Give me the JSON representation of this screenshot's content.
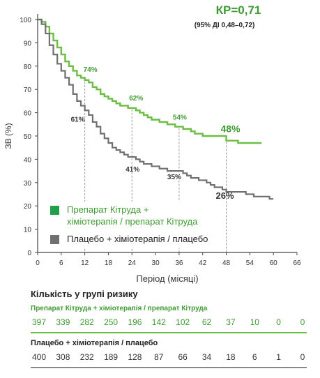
{
  "chart_data": {
    "type": "line",
    "subtype": "kaplan-meier",
    "xlabel": "Період (місяці)",
    "ylabel": "ЗВ (%)",
    "xlim": [
      0,
      66
    ],
    "ylim": [
      0,
      100
    ],
    "xticks": [
      0,
      6,
      12,
      18,
      24,
      30,
      36,
      42,
      48,
      54,
      60,
      66
    ],
    "yticks": [
      0,
      10,
      20,
      30,
      40,
      50,
      60,
      70,
      80,
      90,
      100
    ],
    "hazard_ratio": "КР=0,71",
    "confidence_interval": "(95% ДІ 0,48–0,72)",
    "legend_position": "bottom-left",
    "series": [
      {
        "name": "Препарат Кітруда +\nхіміотерапія / препарат Кітруда",
        "color": "#6cbd45",
        "points": [
          [
            0,
            100
          ],
          [
            1,
            99
          ],
          [
            2,
            97
          ],
          [
            3,
            94
          ],
          [
            4,
            91
          ],
          [
            5,
            88
          ],
          [
            6,
            85
          ],
          [
            7,
            82
          ],
          [
            8,
            80
          ],
          [
            9,
            78
          ],
          [
            10,
            76
          ],
          [
            11,
            75
          ],
          [
            12,
            74
          ],
          [
            13,
            73
          ],
          [
            14,
            71
          ],
          [
            15,
            70
          ],
          [
            16,
            68
          ],
          [
            17,
            67
          ],
          [
            18,
            66
          ],
          [
            19,
            65
          ],
          [
            20,
            64
          ],
          [
            21,
            63
          ],
          [
            22,
            63
          ],
          [
            23,
            62
          ],
          [
            24,
            62
          ],
          [
            25,
            61
          ],
          [
            26,
            60
          ],
          [
            27,
            59
          ],
          [
            28,
            58
          ],
          [
            29,
            57
          ],
          [
            30,
            57
          ],
          [
            31,
            56
          ],
          [
            32,
            56
          ],
          [
            33,
            55
          ],
          [
            34,
            55
          ],
          [
            35,
            54
          ],
          [
            36,
            54
          ],
          [
            37,
            53
          ],
          [
            38,
            53
          ],
          [
            39,
            52
          ],
          [
            40,
            51
          ],
          [
            41,
            51
          ],
          [
            42,
            50
          ],
          [
            43,
            50
          ],
          [
            44,
            50
          ],
          [
            45,
            50
          ],
          [
            46,
            50
          ],
          [
            47,
            50
          ],
          [
            48,
            48
          ],
          [
            49,
            48
          ],
          [
            50,
            48
          ],
          [
            51,
            47
          ],
          [
            52,
            47
          ],
          [
            53,
            47
          ],
          [
            54,
            47
          ],
          [
            55,
            47
          ],
          [
            56,
            47
          ],
          [
            57,
            47
          ]
        ],
        "annotations": [
          {
            "x": 12,
            "y": 74,
            "label": "74%"
          },
          {
            "x": 24,
            "y": 62,
            "label": "62%"
          },
          {
            "x": 36,
            "y": 54,
            "label": "54%"
          },
          {
            "x": 48,
            "y": 48,
            "label": "48%"
          }
        ]
      },
      {
        "name": "Плацебо + хіміотерапія / плацебо",
        "color": "#707070",
        "points": [
          [
            0,
            100
          ],
          [
            1,
            98
          ],
          [
            2,
            94
          ],
          [
            3,
            89
          ],
          [
            4,
            85
          ],
          [
            5,
            81
          ],
          [
            6,
            78
          ],
          [
            7,
            75
          ],
          [
            8,
            72
          ],
          [
            9,
            68
          ],
          [
            10,
            65
          ],
          [
            11,
            63
          ],
          [
            12,
            61
          ],
          [
            13,
            59
          ],
          [
            14,
            56
          ],
          [
            15,
            54
          ],
          [
            16,
            51
          ],
          [
            17,
            49
          ],
          [
            18,
            47
          ],
          [
            19,
            45
          ],
          [
            20,
            44
          ],
          [
            21,
            43
          ],
          [
            22,
            42
          ],
          [
            23,
            41
          ],
          [
            24,
            41
          ],
          [
            25,
            40
          ],
          [
            26,
            39
          ],
          [
            27,
            38
          ],
          [
            28,
            38
          ],
          [
            29,
            37
          ],
          [
            30,
            37
          ],
          [
            31,
            36
          ],
          [
            32,
            36
          ],
          [
            33,
            35
          ],
          [
            34,
            35
          ],
          [
            35,
            35
          ],
          [
            36,
            35
          ],
          [
            37,
            34
          ],
          [
            38,
            33
          ],
          [
            39,
            32
          ],
          [
            40,
            32
          ],
          [
            41,
            31
          ],
          [
            42,
            31
          ],
          [
            43,
            30
          ],
          [
            44,
            29
          ],
          [
            45,
            28
          ],
          [
            46,
            28
          ],
          [
            47,
            27
          ],
          [
            48,
            26
          ],
          [
            49,
            26
          ],
          [
            50,
            26
          ],
          [
            51,
            26
          ],
          [
            52,
            26
          ],
          [
            53,
            25
          ],
          [
            54,
            25
          ],
          [
            55,
            24
          ],
          [
            56,
            24
          ],
          [
            57,
            24
          ],
          [
            58,
            24
          ],
          [
            59,
            23
          ],
          [
            60,
            23
          ]
        ],
        "annotations": [
          {
            "x": 12,
            "y": 61,
            "label": "61%"
          },
          {
            "x": 24,
            "y": 41,
            "label": "41%"
          },
          {
            "x": 36,
            "y": 35,
            "label": "35%"
          },
          {
            "x": 48,
            "y": 26,
            "label": "26%"
          }
        ]
      }
    ]
  },
  "risk_table": {
    "title": "Кількість у групі ризику",
    "groups": [
      {
        "name": "Препарат Кітруда + хіміотерапія / препарат Кітруда",
        "color": "#3f9b33",
        "values": [
          "397",
          "339",
          "282",
          "250",
          "196",
          "142",
          "102",
          "62",
          "37",
          "10",
          "0",
          "0"
        ]
      },
      {
        "name": "Плацебо + хіміотерапія / плацебо",
        "color": "#222222",
        "values": [
          "400",
          "308",
          "232",
          "189",
          "128",
          "87",
          "66",
          "34",
          "18",
          "6",
          "1",
          "0"
        ]
      }
    ]
  },
  "legend": {
    "items": [
      {
        "label": "Препарат Кітруда +\nхіміотерапія / препарат Кітруда",
        "color": "#21a04a"
      },
      {
        "label": "Плацебо + хіміотерапія / плацебо",
        "color": "#707070"
      }
    ]
  }
}
